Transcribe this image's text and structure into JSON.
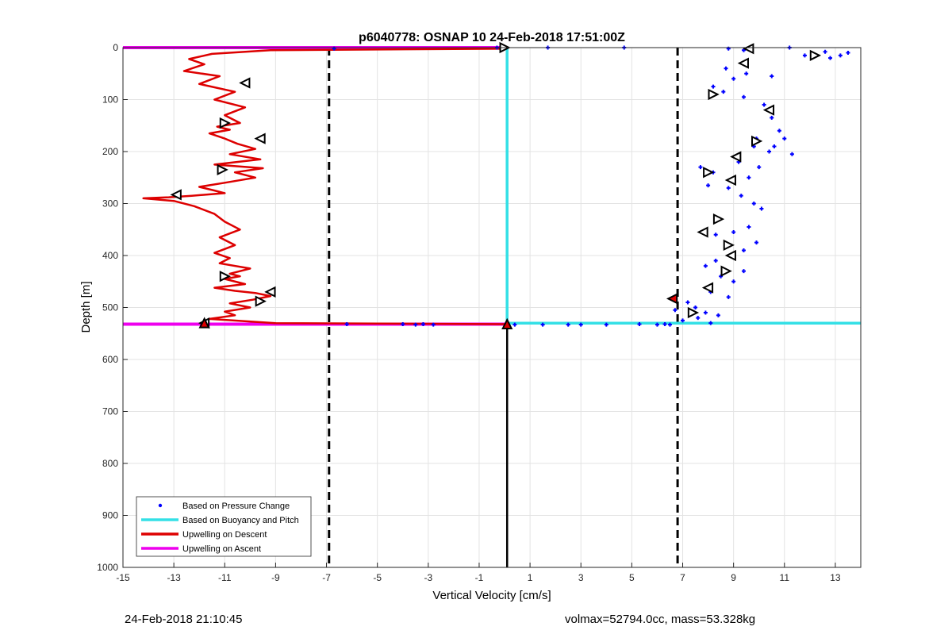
{
  "chart_data": {
    "type": "line",
    "title": "p6040778: OSNAP 10 24-Feb-2018 17:51:00Z",
    "xlabel": "Vertical Velocity [cm/s]",
    "ylabel": "Depth [m]",
    "xlim": [
      -15,
      14
    ],
    "ylim": [
      0,
      1000
    ],
    "y_reversed": true,
    "grid": true,
    "x_ticks": [
      -15,
      -13,
      -11,
      -9,
      -7,
      -5,
      -3,
      -1,
      1,
      3,
      5,
      7,
      9,
      11,
      13
    ],
    "y_ticks": [
      0,
      100,
      200,
      300,
      400,
      500,
      600,
      700,
      800,
      900,
      1000
    ],
    "legend_position": "bottom-left",
    "legend": [
      {
        "label": "Based on Pressure Change",
        "color": "#0000ff",
        "kind": "dot"
      },
      {
        "label": "Based on Buoyancy and Pitch",
        "color": "#33e0e6",
        "kind": "line"
      },
      {
        "label": "Upwelling on Descent",
        "color": "#dd0000",
        "kind": "line"
      },
      {
        "label": "Upwelling on Ascent",
        "color": "#ee00ee",
        "kind": "line"
      }
    ],
    "reference_lines": {
      "dashed_x": [
        -6.9,
        6.8
      ],
      "color": "#000000"
    },
    "series": [
      {
        "name": "Upwelling on Descent",
        "color": "#dd0000",
        "x": [
          0.1,
          -9.2,
          -11.5,
          -12.4,
          -11.8,
          -12.6,
          -11.2,
          -12.0,
          -10.6,
          -11.4,
          -10.2,
          -11.0,
          -10.4,
          -11.3,
          -10.8,
          -11.6,
          -11.0,
          -10.5,
          -9.8,
          -10.8,
          -9.6,
          -11.4,
          -9.5,
          -10.6,
          -9.8,
          -11.0,
          -12.0,
          -11.4,
          -11.0,
          -12.3,
          -13.2,
          -14.2,
          -13.0,
          -12.2,
          -11.4,
          -11.0,
          -10.4,
          -11.2,
          -10.6,
          -11.4,
          -10.8,
          -11.2,
          -10.0,
          -10.8,
          -10.4,
          -11.0,
          -10.2,
          -11.4,
          -10.6,
          -9.8,
          -9.2,
          -9.9,
          -10.8,
          -10.0,
          -11.0,
          -10.6,
          -11.6,
          -9.0,
          0.1
        ],
        "y": [
          2,
          5,
          12,
          22,
          32,
          45,
          55,
          70,
          85,
          100,
          115,
          130,
          145,
          152,
          158,
          165,
          175,
          185,
          195,
          205,
          215,
          225,
          232,
          240,
          250,
          260,
          268,
          275,
          280,
          285,
          288,
          290,
          295,
          305,
          320,
          335,
          350,
          365,
          380,
          395,
          405,
          415,
          425,
          435,
          440,
          445,
          455,
          462,
          468,
          472,
          478,
          485,
          492,
          500,
          508,
          515,
          522,
          530,
          532
        ]
      },
      {
        "name": "Upwelling on Ascent",
        "color": "#ee00ee",
        "x": [
          -15,
          0.1
        ],
        "y": [
          0,
          0
        ],
        "x2": [
          -15,
          0.1
        ],
        "y2": [
          532,
          532
        ]
      },
      {
        "name": "Based on Buoyancy and Pitch",
        "color": "#33e0e6",
        "x": [
          0.1,
          0.1,
          14.0
        ],
        "y": [
          2,
          530,
          530
        ]
      },
      {
        "name": "Based on Pressure Change",
        "color": "#0000ff",
        "x": [
          -6.7,
          -0.3,
          1.7,
          4.7,
          8.8,
          9.4,
          11.2,
          11.8,
          12.6,
          13.2,
          13.5,
          12.8,
          8.7,
          9.5,
          10.5,
          9.0,
          8.2,
          8.6,
          9.4,
          10.2,
          10.5,
          10.8,
          11.0,
          9.9,
          10.6,
          11.3,
          9.8,
          10.4,
          9.2,
          10.0,
          8.2,
          7.7,
          9.6,
          8.0,
          8.8,
          9.3,
          9.8,
          10.1,
          8.4,
          9.6,
          9.0,
          8.3,
          9.9,
          8.7,
          9.4,
          8.9,
          8.3,
          7.9,
          9.4,
          8.5,
          9.0,
          8.1,
          8.8,
          7.2,
          7.5,
          6.7,
          7.9,
          8.4,
          7.6,
          7.0,
          8.1,
          6.3,
          5.3,
          -6.2,
          -4.0,
          -3.5,
          -2.8,
          -3.2,
          0.4,
          1.5,
          2.5,
          3.0,
          4.0,
          6.0,
          6.5
        ],
        "y": [
          2,
          0,
          0,
          0,
          2,
          5,
          0,
          15,
          8,
          15,
          10,
          20,
          40,
          50,
          55,
          60,
          75,
          85,
          95,
          110,
          135,
          160,
          175,
          175,
          190,
          205,
          190,
          200,
          220,
          230,
          240,
          230,
          250,
          265,
          270,
          285,
          300,
          310,
          330,
          345,
          355,
          360,
          375,
          380,
          390,
          400,
          410,
          420,
          430,
          440,
          450,
          470,
          480,
          490,
          500,
          505,
          510,
          515,
          520,
          525,
          530,
          532,
          532,
          532,
          532,
          533,
          533,
          532,
          533,
          533,
          533,
          533,
          533,
          533,
          533
        ]
      }
    ],
    "markers": {
      "descent_triangles": {
        "color": "#ffffff",
        "edge": "#000000",
        "x": [
          0.0,
          -10.2,
          -11.0,
          -9.6,
          -11.1,
          -12.9,
          -11.0,
          -9.2,
          -9.6,
          -11.8
        ],
        "y": [
          0,
          68,
          145,
          175,
          235,
          283,
          440,
          470,
          488,
          530
        ]
      },
      "ascent_triangles": {
        "color": "#ffffff",
        "edge": "#000000",
        "x": [
          9.6,
          12.2,
          9.4,
          8.2,
          10.4,
          9.9,
          9.1,
          8.0,
          8.9,
          8.4,
          7.8,
          8.8,
          8.9,
          8.7,
          8.0,
          7.4
        ],
        "y": [
          2,
          15,
          30,
          90,
          120,
          180,
          210,
          240,
          255,
          330,
          355,
          380,
          400,
          430,
          462,
          510
        ]
      },
      "red_triangles": {
        "color": "#dd0000",
        "x": [
          -11.8,
          0.1,
          6.6
        ],
        "y": [
          530,
          532,
          483
        ]
      }
    }
  },
  "footer": {
    "left": "24-Feb-2018 21:10:45",
    "right": "volmax=52794.0cc, mass=53.328kg"
  }
}
